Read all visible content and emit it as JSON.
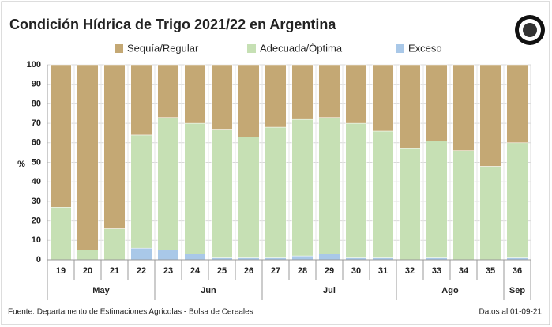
{
  "chart_data": {
    "type": "stacked_bar",
    "title": "Condición Hídrica de Trigo 2021/22 en Argentina",
    "y_label": "%",
    "categories": [
      "19",
      "20",
      "21",
      "22",
      "23",
      "24",
      "25",
      "26",
      "27",
      "28",
      "29",
      "30",
      "31",
      "32",
      "33",
      "34",
      "35",
      "36"
    ],
    "x_groups": [
      "May",
      null,
      null,
      null,
      "Jun",
      null,
      null,
      null,
      "Jul",
      null,
      null,
      null,
      null,
      "Ago",
      null,
      null,
      null,
      "Sep"
    ],
    "series": [
      {
        "name": "Sequía/Regular",
        "color": "#c4a874",
        "values": [
          73,
          95,
          84,
          36,
          27,
          30,
          33,
          37,
          32,
          28,
          27,
          30,
          34,
          43,
          39,
          44,
          52,
          40
        ]
      },
      {
        "name": "Adecuada/Óptima",
        "color": "#c6e0b4",
        "values": [
          27,
          5,
          16,
          58,
          68,
          67,
          66,
          62,
          67,
          70,
          70,
          69,
          65,
          57,
          60,
          56,
          48,
          59
        ]
      },
      {
        "name": "Exceso",
        "color": "#a9c8e8",
        "values": [
          0,
          0,
          0,
          6,
          5,
          3,
          1,
          1,
          1,
          2,
          3,
          1,
          1,
          0,
          1,
          0,
          0,
          1
        ]
      }
    ],
    "ylim": [
      0,
      100
    ],
    "yticks": [
      0,
      10,
      20,
      30,
      40,
      50,
      60,
      70,
      80,
      90,
      100
    ],
    "grid": true,
    "source": "Fuente: Departamento de Estimaciones Agrícolas - Bolsa de Cereales",
    "date_note": "Datos al 01-09-21"
  }
}
